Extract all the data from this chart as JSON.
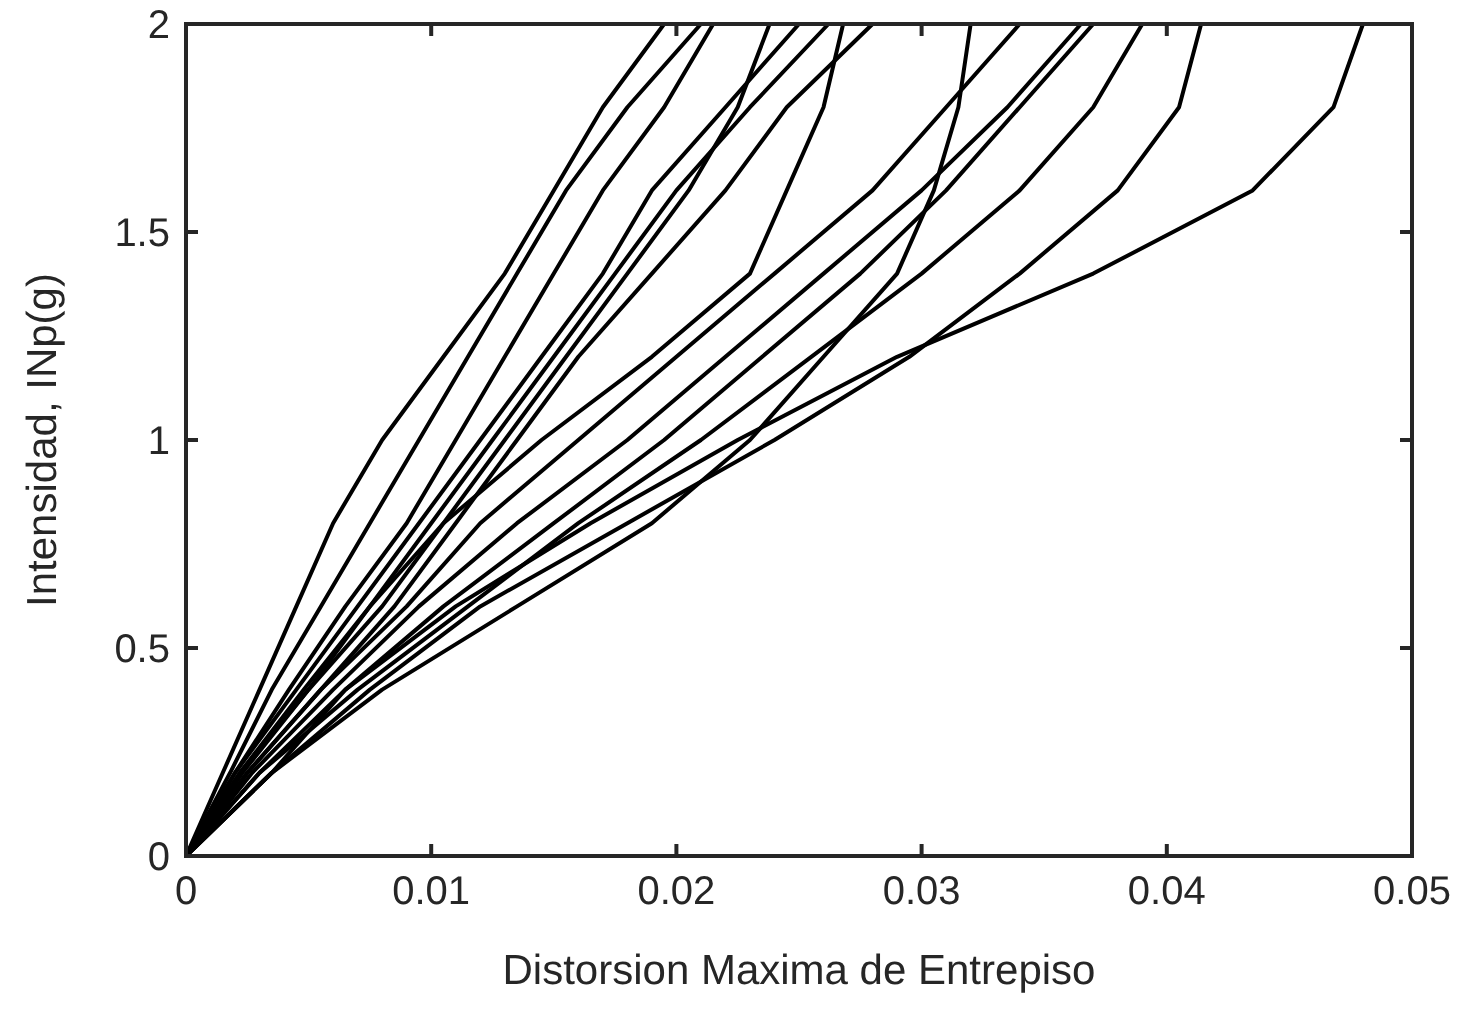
{
  "chart_data": {
    "type": "line",
    "xlabel": "Distorsion Maxima de Entrepiso",
    "ylabel": "Intensidad, INp(g)",
    "xlim": [
      0,
      0.05
    ],
    "ylim": [
      0,
      2
    ],
    "xticks": [
      0,
      0.01,
      0.02,
      0.03,
      0.04,
      0.05
    ],
    "yticks": [
      0,
      0.5,
      1,
      1.5,
      2
    ],
    "marker": "none",
    "line_style": "solid",
    "series": [
      {
        "color": "#000000",
        "x": [
          0,
          0.0015,
          0.003,
          0.0045,
          0.006,
          0.008,
          0.0105,
          0.013,
          0.015,
          0.017,
          0.0195
        ],
        "values": [
          0,
          0.2,
          0.4,
          0.6,
          0.8,
          1.0,
          1.2,
          1.4,
          1.6,
          1.8,
          2.0
        ]
      },
      {
        "color": "#000000",
        "x": [
          0,
          0.0018,
          0.0035,
          0.0055,
          0.0075,
          0.0095,
          0.0115,
          0.0135,
          0.0155,
          0.018,
          0.021
        ],
        "values": [
          0,
          0.2,
          0.4,
          0.6,
          0.8,
          1.0,
          1.2,
          1.4,
          1.6,
          1.8,
          2.0
        ]
      },
      {
        "color": "#000000",
        "x": [
          0,
          0.002,
          0.0042,
          0.0065,
          0.009,
          0.011,
          0.013,
          0.015,
          0.017,
          0.0195,
          0.0215
        ],
        "values": [
          0,
          0.2,
          0.4,
          0.6,
          0.8,
          1.0,
          1.2,
          1.4,
          1.6,
          1.8,
          2.0
        ]
      },
      {
        "color": "#000000",
        "x": [
          0,
          0.002,
          0.0045,
          0.007,
          0.0095,
          0.012,
          0.0145,
          0.017,
          0.019,
          0.022,
          0.025
        ],
        "values": [
          0,
          0.2,
          0.4,
          0.6,
          0.8,
          1.0,
          1.2,
          1.4,
          1.6,
          1.8,
          2.0
        ]
      },
      {
        "color": "#000000",
        "x": [
          0,
          0.0022,
          0.0048,
          0.0075,
          0.01,
          0.0125,
          0.015,
          0.0175,
          0.02,
          0.023,
          0.0262
        ],
        "values": [
          0,
          0.2,
          0.4,
          0.6,
          0.8,
          1.0,
          1.2,
          1.4,
          1.6,
          1.8,
          2.0
        ]
      },
      {
        "color": "#000000",
        "x": [
          0,
          0.0022,
          0.005,
          0.008,
          0.0105,
          0.013,
          0.0155,
          0.018,
          0.0205,
          0.0225,
          0.0238
        ],
        "values": [
          0,
          0.2,
          0.4,
          0.6,
          0.8,
          1.0,
          1.2,
          1.4,
          1.6,
          1.8,
          2.0
        ]
      },
      {
        "color": "#000000",
        "x": [
          0,
          0.0025,
          0.0055,
          0.0085,
          0.011,
          0.0135,
          0.016,
          0.019,
          0.022,
          0.0245,
          0.028
        ],
        "values": [
          0,
          0.2,
          0.4,
          0.6,
          0.8,
          1.0,
          1.2,
          1.4,
          1.6,
          1.8,
          2.0
        ]
      },
      {
        "color": "#000000",
        "x": [
          0,
          0.0023,
          0.005,
          0.0075,
          0.0105,
          0.0145,
          0.019,
          0.023,
          0.0245,
          0.026,
          0.0268
        ],
        "values": [
          0,
          0.2,
          0.4,
          0.6,
          0.8,
          1.0,
          1.2,
          1.4,
          1.6,
          1.8,
          2.0
        ]
      },
      {
        "color": "#000000",
        "x": [
          0,
          0.0025,
          0.0055,
          0.009,
          0.012,
          0.016,
          0.02,
          0.024,
          0.028,
          0.031,
          0.034
        ],
        "values": [
          0,
          0.2,
          0.4,
          0.6,
          0.8,
          1.0,
          1.2,
          1.4,
          1.6,
          1.8,
          2.0
        ]
      },
      {
        "color": "#000000",
        "x": [
          0,
          0.0027,
          0.006,
          0.0095,
          0.0135,
          0.018,
          0.022,
          0.026,
          0.03,
          0.0335,
          0.0365
        ],
        "values": [
          0,
          0.2,
          0.4,
          0.6,
          0.8,
          1.0,
          1.2,
          1.4,
          1.6,
          1.8,
          2.0
        ]
      },
      {
        "color": "#000000",
        "x": [
          0,
          0.003,
          0.0065,
          0.0105,
          0.015,
          0.0195,
          0.0235,
          0.0275,
          0.031,
          0.034,
          0.037
        ],
        "values": [
          0,
          0.2,
          0.4,
          0.6,
          0.8,
          1.0,
          1.2,
          1.4,
          1.6,
          1.8,
          2.0
        ]
      },
      {
        "color": "#000000",
        "x": [
          0,
          0.003,
          0.007,
          0.0115,
          0.016,
          0.021,
          0.0255,
          0.03,
          0.034,
          0.037,
          0.039
        ],
        "values": [
          0,
          0.2,
          0.4,
          0.6,
          0.8,
          1.0,
          1.2,
          1.4,
          1.6,
          1.8,
          2.0
        ]
      },
      {
        "color": "#000000",
        "x": [
          0,
          0.0035,
          0.0075,
          0.012,
          0.018,
          0.024,
          0.0295,
          0.034,
          0.038,
          0.0405,
          0.0414
        ],
        "values": [
          0,
          0.2,
          0.4,
          0.6,
          0.8,
          1.0,
          1.2,
          1.4,
          1.6,
          1.8,
          2.0
        ]
      },
      {
        "color": "#000000",
        "x": [
          0,
          0.0035,
          0.008,
          0.0135,
          0.019,
          0.023,
          0.026,
          0.029,
          0.0305,
          0.0315,
          0.032
        ],
        "values": [
          0,
          0.2,
          0.4,
          0.6,
          0.8,
          1.0,
          1.2,
          1.4,
          1.6,
          1.8,
          2.0
        ]
      },
      {
        "color": "#000000",
        "x": [
          0,
          0.0035,
          0.0065,
          0.011,
          0.0165,
          0.0225,
          0.029,
          0.037,
          0.0435,
          0.0468,
          0.048
        ],
        "values": [
          0,
          0.2,
          0.4,
          0.6,
          0.8,
          1.0,
          1.2,
          1.4,
          1.6,
          1.8,
          2.0
        ]
      }
    ]
  }
}
